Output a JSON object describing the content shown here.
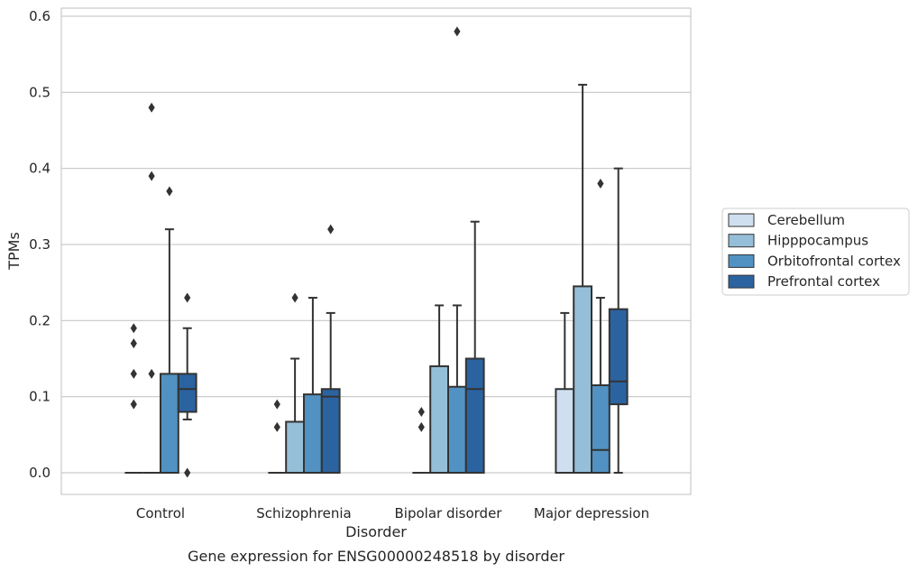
{
  "chart_data": {
    "type": "boxplot",
    "caption": "Gene expression for ENSG00000248518 by disorder",
    "xlabel": "Disorder",
    "ylabel": "TPMs",
    "ylim": [
      -0.03,
      0.61
    ],
    "yticks": [
      0.0,
      0.1,
      0.2,
      0.3,
      0.4,
      0.5,
      0.6
    ],
    "ytick_labels": [
      "0.0",
      "0.1",
      "0.2",
      "0.3",
      "0.4",
      "0.5",
      "0.6"
    ],
    "grid": "horizontal",
    "legend_position": "right",
    "categories": [
      "Control",
      "Schizophrenia",
      "Bipolar disorder",
      "Major depression"
    ],
    "series": [
      {
        "name": "Cerebellum",
        "color": "#cfdff0",
        "boxes": [
          {
            "q1": 0,
            "median": 0,
            "q3": 0,
            "whislo": 0,
            "whishi": 0,
            "fliers": [
              0.19,
              0.17,
              0.13,
              0.09
            ]
          },
          {
            "q1": 0,
            "median": 0,
            "q3": 0,
            "whislo": 0,
            "whishi": 0,
            "fliers": [
              0.09,
              0.06
            ]
          },
          {
            "q1": 0,
            "median": 0,
            "q3": 0,
            "whislo": 0,
            "whishi": 0,
            "fliers": [
              0.08,
              0.06
            ]
          },
          {
            "q1": 0,
            "median": 0,
            "q3": 0.11,
            "whislo": 0,
            "whishi": 0.21,
            "fliers": []
          }
        ]
      },
      {
        "name": "Hipppocampus",
        "color": "#95bfd9",
        "boxes": [
          {
            "q1": 0,
            "median": 0,
            "q3": 0,
            "whislo": 0,
            "whishi": 0,
            "fliers": [
              0.48,
              0.39,
              0.13
            ]
          },
          {
            "q1": 0,
            "median": 0,
            "q3": 0.067,
            "whislo": 0,
            "whishi": 0.15,
            "fliers": [
              0.23
            ]
          },
          {
            "q1": 0,
            "median": 0,
            "q3": 0.14,
            "whislo": 0,
            "whishi": 0.22,
            "fliers": []
          },
          {
            "q1": 0,
            "median": 0,
            "q3": 0.245,
            "whislo": 0,
            "whishi": 0.51,
            "fliers": []
          }
        ]
      },
      {
        "name": "Orbitofrontal cortex",
        "color": "#5192c3",
        "boxes": [
          {
            "q1": 0,
            "median": 0,
            "q3": 0.13,
            "whislo": 0,
            "whishi": 0.32,
            "fliers": [
              0.37
            ]
          },
          {
            "q1": 0,
            "median": 0,
            "q3": 0.103,
            "whislo": 0,
            "whishi": 0.23,
            "fliers": []
          },
          {
            "q1": 0,
            "median": 0,
            "q3": 0.113,
            "whislo": 0,
            "whishi": 0.22,
            "fliers": [
              0.58
            ]
          },
          {
            "q1": 0,
            "median": 0.03,
            "q3": 0.115,
            "whislo": 0,
            "whishi": 0.23,
            "fliers": [
              0.38
            ]
          }
        ]
      },
      {
        "name": "Prefrontal cortex",
        "color": "#2a63a0",
        "boxes": [
          {
            "q1": 0.08,
            "median": 0.11,
            "q3": 0.13,
            "whislo": 0.07,
            "whishi": 0.19,
            "fliers": [
              0.23,
              0.0
            ]
          },
          {
            "q1": 0,
            "median": 0.1,
            "q3": 0.11,
            "whislo": 0,
            "whishi": 0.21,
            "fliers": [
              0.32
            ]
          },
          {
            "q1": 0,
            "median": 0.11,
            "q3": 0.15,
            "whislo": 0,
            "whishi": 0.33,
            "fliers": []
          },
          {
            "q1": 0.09,
            "median": 0.12,
            "q3": 0.215,
            "whislo": 0,
            "whishi": 0.4,
            "fliers": []
          }
        ]
      }
    ]
  }
}
